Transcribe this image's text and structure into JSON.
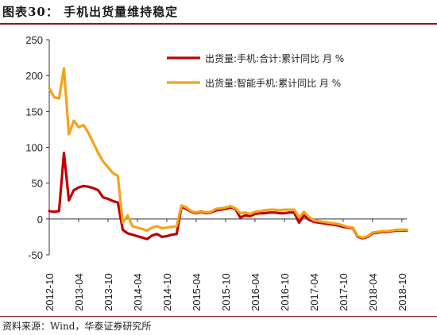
{
  "header": {
    "title": "图表30：   手机出货量维持稳定"
  },
  "footer": {
    "source": "资料来源：Wind，华泰证券研究所"
  },
  "colors": {
    "series_total": "#c00000",
    "series_smart": "#f5a21b",
    "rule": "#8b1a1a"
  },
  "chart_data": {
    "type": "line",
    "title": "",
    "xlabel": "",
    "ylabel": "",
    "ylim": [
      -50,
      250
    ],
    "yticks": [
      -50,
      0,
      50,
      100,
      150,
      200,
      250
    ],
    "x_range": [
      "2012-10",
      "2018-11"
    ],
    "xticks": [
      "2012-10",
      "2013-04",
      "2013-10",
      "2014-04",
      "2014-10",
      "2015-04",
      "2015-10",
      "2016-04",
      "2016-10",
      "2017-04",
      "2017-10",
      "2018-04",
      "2018-10"
    ],
    "grid": false,
    "legend_position": "top-center",
    "series": [
      {
        "name": "出货量:手机:合计:累计同比 月 %",
        "color": "#c00000",
        "points": [
          [
            "2012-10",
            11
          ],
          [
            "2012-11",
            10
          ],
          [
            "2012-12",
            11
          ],
          [
            "2013-01",
            92
          ],
          [
            "2013-02",
            26
          ],
          [
            "2013-03",
            40
          ],
          [
            "2013-04",
            44
          ],
          [
            "2013-05",
            46
          ],
          [
            "2013-06",
            45
          ],
          [
            "2013-07",
            43
          ],
          [
            "2013-08",
            40
          ],
          [
            "2013-09",
            30
          ],
          [
            "2013-10",
            28
          ],
          [
            "2013-11",
            25
          ],
          [
            "2013-12",
            23
          ],
          [
            "2014-01",
            -15
          ],
          [
            "2014-02",
            -20
          ],
          [
            "2014-03",
            -22
          ],
          [
            "2014-04",
            -24
          ],
          [
            "2014-05",
            -26
          ],
          [
            "2014-06",
            -28
          ],
          [
            "2014-07",
            -23
          ],
          [
            "2014-08",
            -21
          ],
          [
            "2014-09",
            -25
          ],
          [
            "2014-10",
            -24
          ],
          [
            "2014-11",
            -22
          ],
          [
            "2014-12",
            -21
          ],
          [
            "2015-01",
            17
          ],
          [
            "2015-02",
            14
          ],
          [
            "2015-03",
            10
          ],
          [
            "2015-04",
            8
          ],
          [
            "2015-05",
            10
          ],
          [
            "2015-06",
            8
          ],
          [
            "2015-07",
            9
          ],
          [
            "2015-08",
            12
          ],
          [
            "2015-09",
            13
          ],
          [
            "2015-10",
            14
          ],
          [
            "2015-11",
            16
          ],
          [
            "2015-12",
            14
          ],
          [
            "2016-01",
            2
          ],
          [
            "2016-02",
            5
          ],
          [
            "2016-03",
            4
          ],
          [
            "2016-04",
            7
          ],
          [
            "2016-05",
            8
          ],
          [
            "2016-06",
            8
          ],
          [
            "2016-07",
            9
          ],
          [
            "2016-08",
            9
          ],
          [
            "2016-09",
            8
          ],
          [
            "2016-10",
            8
          ],
          [
            "2016-11",
            9
          ],
          [
            "2016-12",
            9
          ],
          [
            "2017-01",
            -5
          ],
          [
            "2017-02",
            5
          ],
          [
            "2017-03",
            -1
          ],
          [
            "2017-04",
            -4
          ],
          [
            "2017-05",
            -5
          ],
          [
            "2017-06",
            -6
          ],
          [
            "2017-07",
            -7
          ],
          [
            "2017-08",
            -8
          ],
          [
            "2017-09",
            -9
          ],
          [
            "2017-10",
            -11
          ],
          [
            "2017-11",
            -12
          ],
          [
            "2017-12",
            -13
          ],
          [
            "2018-01",
            -25
          ],
          [
            "2018-02",
            -27
          ],
          [
            "2018-03",
            -25
          ],
          [
            "2018-04",
            -20
          ],
          [
            "2018-05",
            -19
          ],
          [
            "2018-06",
            -18
          ],
          [
            "2018-07",
            -18
          ],
          [
            "2018-08",
            -17
          ],
          [
            "2018-09",
            -16
          ],
          [
            "2018-10",
            -16
          ],
          [
            "2018-11",
            -16
          ]
        ]
      },
      {
        "name": "出货量:智能手机:累计同比 月 %",
        "color": "#f5a21b",
        "points": [
          [
            "2012-10",
            182
          ],
          [
            "2012-11",
            170
          ],
          [
            "2012-12",
            168
          ],
          [
            "2013-01",
            210
          ],
          [
            "2013-02",
            118
          ],
          [
            "2013-03",
            137
          ],
          [
            "2013-04",
            128
          ],
          [
            "2013-05",
            131
          ],
          [
            "2013-06",
            120
          ],
          [
            "2013-07",
            106
          ],
          [
            "2013-08",
            92
          ],
          [
            "2013-09",
            80
          ],
          [
            "2013-10",
            72
          ],
          [
            "2013-11",
            64
          ],
          [
            "2013-12",
            60
          ],
          [
            "2014-01",
            -5
          ],
          [
            "2014-02",
            5
          ],
          [
            "2014-03",
            -10
          ],
          [
            "2014-04",
            -12
          ],
          [
            "2014-05",
            -14
          ],
          [
            "2014-06",
            -16
          ],
          [
            "2014-07",
            -12
          ],
          [
            "2014-08",
            -10
          ],
          [
            "2014-09",
            -13
          ],
          [
            "2014-10",
            -12
          ],
          [
            "2014-11",
            -11
          ],
          [
            "2014-12",
            -10
          ],
          [
            "2015-01",
            19
          ],
          [
            "2015-02",
            16
          ],
          [
            "2015-03",
            11
          ],
          [
            "2015-04",
            9
          ],
          [
            "2015-05",
            11
          ],
          [
            "2015-06",
            9
          ],
          [
            "2015-07",
            10
          ],
          [
            "2015-08",
            14
          ],
          [
            "2015-09",
            15
          ],
          [
            "2015-10",
            16
          ],
          [
            "2015-11",
            18
          ],
          [
            "2015-12",
            15
          ],
          [
            "2016-01",
            8
          ],
          [
            "2016-02",
            9
          ],
          [
            "2016-03",
            7
          ],
          [
            "2016-04",
            10
          ],
          [
            "2016-05",
            11
          ],
          [
            "2016-06",
            12
          ],
          [
            "2016-07",
            13
          ],
          [
            "2016-08",
            13
          ],
          [
            "2016-09",
            12
          ],
          [
            "2016-10",
            13
          ],
          [
            "2016-11",
            13
          ],
          [
            "2016-12",
            13
          ],
          [
            "2017-01",
            2
          ],
          [
            "2017-02",
            10
          ],
          [
            "2017-03",
            3
          ],
          [
            "2017-04",
            -2
          ],
          [
            "2017-05",
            -3
          ],
          [
            "2017-06",
            -4
          ],
          [
            "2017-07",
            -5
          ],
          [
            "2017-08",
            -6
          ],
          [
            "2017-09",
            -7
          ],
          [
            "2017-10",
            -9
          ],
          [
            "2017-11",
            -11
          ],
          [
            "2017-12",
            -12
          ],
          [
            "2018-01",
            -24
          ],
          [
            "2018-02",
            -26
          ],
          [
            "2018-03",
            -24
          ],
          [
            "2018-04",
            -19
          ],
          [
            "2018-05",
            -18
          ],
          [
            "2018-06",
            -17
          ],
          [
            "2018-07",
            -17
          ],
          [
            "2018-08",
            -16
          ],
          [
            "2018-09",
            -15
          ],
          [
            "2018-10",
            -15
          ],
          [
            "2018-11",
            -15
          ]
        ]
      }
    ]
  }
}
